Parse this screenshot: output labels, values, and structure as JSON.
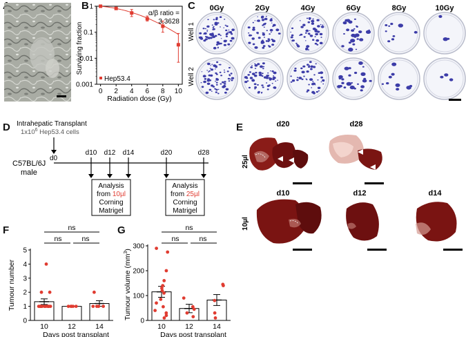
{
  "panels": {
    "A": "A",
    "B": "B",
    "C": "C",
    "D": "D",
    "E": "E",
    "F": "F",
    "G": "G"
  },
  "panelB": {
    "ylabel": "Surviving fraction",
    "xlabel": "Radiation dose (Gy)",
    "ratio_label": "α/β ratio =",
    "ratio_value": "3.3628",
    "legend": "Hep53.4",
    "xticks": [
      "0",
      "2",
      "4",
      "6",
      "8",
      "10"
    ],
    "yticks": [
      "1",
      "0.1",
      "0.01",
      "0.001"
    ]
  },
  "panelC": {
    "doses": [
      "0Gy",
      "2Gy",
      "4Gy",
      "6Gy",
      "8Gy",
      "10Gy"
    ],
    "rows": [
      "Well 1",
      "Well 2"
    ]
  },
  "panelD": {
    "title": "Intrahepatic Transplant",
    "cells_prefix": "1x10",
    "cells_exp": "6",
    "cells_suffix": " Hep53.4 cells",
    "mouse_line1": "C57BL/6J",
    "mouse_line2": "male",
    "days": [
      "d0",
      "d10",
      "d12",
      "d14",
      "d20",
      "d28"
    ],
    "box1": {
      "line1": "Analysis",
      "line2a": "from ",
      "line2b": "10µl",
      "line3": "Corning",
      "line4": "Matrigel"
    },
    "box2": {
      "line1": "Analysis",
      "line2a": "from ",
      "line2b": "25µl",
      "line3": "Corning",
      "line4": "Matrigel"
    }
  },
  "panelE": {
    "row1_label": "25µl",
    "row2_label": "10µl",
    "row1_days": [
      "d20",
      "d28"
    ],
    "row2_days": [
      "d10",
      "d12",
      "d14"
    ]
  },
  "chart_data": [
    {
      "id": "B",
      "type": "scatter",
      "title": "",
      "xlabel": "Radiation dose (Gy)",
      "ylabel": "Surviving fraction",
      "yscale": "log",
      "xlim": [
        -0.5,
        10.5
      ],
      "ylim": [
        0.001,
        1
      ],
      "x": [
        0,
        2,
        4,
        6,
        8,
        10
      ],
      "y": [
        1.0,
        0.82,
        0.55,
        0.33,
        0.17,
        0.033
      ],
      "err_low": [
        0.0,
        0.75,
        0.4,
        0.27,
        0.1,
        0.007
      ],
      "err_high": [
        1.0,
        0.92,
        0.75,
        0.42,
        0.27,
        0.09
      ],
      "series_name": "Hep53.4",
      "color": "#e03c31"
    },
    {
      "id": "F",
      "type": "bar",
      "title": "",
      "xlabel": "Days post transplant",
      "ylabel": "Tumour number",
      "categories": [
        "10",
        "12",
        "14"
      ],
      "values": [
        1.33,
        1.0,
        1.2
      ],
      "sem": [
        0.2,
        0.0,
        0.2
      ],
      "ylim": [
        0,
        5
      ],
      "yticks": [
        "0",
        "1",
        "2",
        "3",
        "4",
        "5"
      ],
      "points": [
        [
          4,
          2,
          2,
          1,
          1,
          1,
          1,
          1,
          1,
          1,
          1,
          1,
          1,
          1,
          1
        ],
        [
          1,
          1,
          1,
          1,
          1
        ],
        [
          2,
          1,
          1,
          1,
          1
        ]
      ],
      "significance": [
        "ns",
        "ns",
        "ns"
      ],
      "color": "#e03c31"
    },
    {
      "id": "G",
      "type": "bar",
      "title": "",
      "xlabel": "Days post transplant",
      "ylabel_main": "Tumour volume (mm",
      "ylabel_sup": "3",
      "ylabel_end": ")",
      "categories": [
        "10",
        "12",
        "14"
      ],
      "values": [
        115,
        48,
        82
      ],
      "sem": [
        22,
        17,
        22
      ],
      "ylim": [
        0,
        300
      ],
      "yticks": [
        "0",
        "100",
        "200",
        "300"
      ],
      "points": [
        [
          290,
          275,
          200,
          160,
          140,
          130,
          120,
          110,
          85,
          70,
          55,
          40,
          30,
          20,
          10
        ],
        [
          90,
          55,
          45,
          30,
          15
        ],
        [
          145,
          140,
          80,
          30,
          10
        ]
      ],
      "significance": [
        "ns",
        "ns",
        "ns"
      ],
      "color": "#e03c31"
    }
  ],
  "colors": {
    "accent": "#e03c31",
    "colony": "#3c3ca8",
    "liver": "#6d1010"
  }
}
